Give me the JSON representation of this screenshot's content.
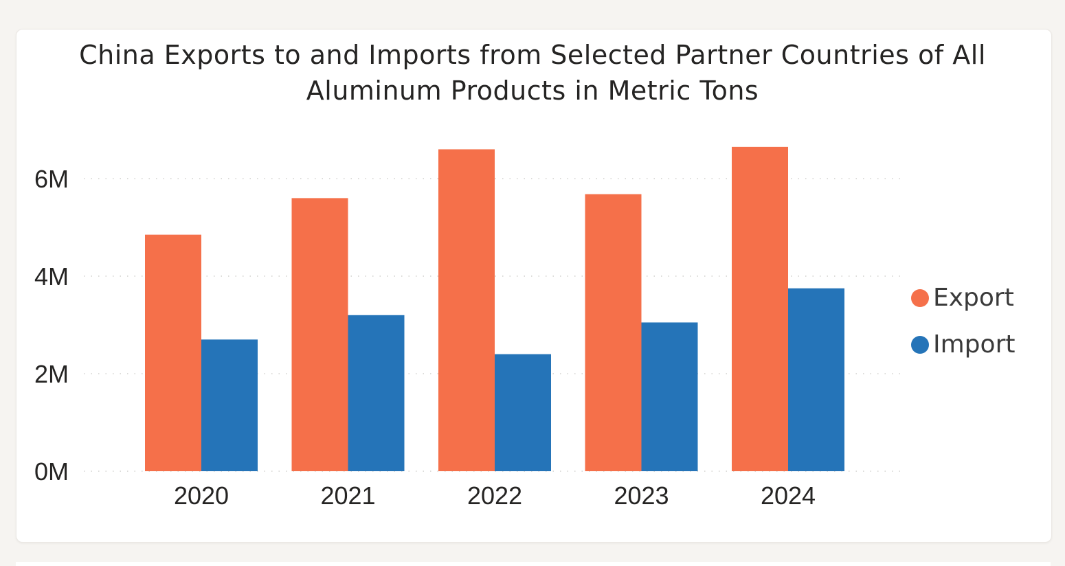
{
  "chart_data": {
    "type": "bar",
    "title": "China Exports to and Imports from Selected Partner Countries of All Aluminum Products in Metric Tons",
    "title_lines": [
      "China Exports to and Imports from Selected Partner Countries of All",
      "Aluminum Products in Metric Tons"
    ],
    "xlabel": "",
    "ylabel": "",
    "categories": [
      "2020",
      "2021",
      "2022",
      "2023",
      "2024"
    ],
    "series": [
      {
        "name": "Export",
        "color": "#f5704a",
        "values": [
          4.85,
          5.6,
          6.6,
          5.68,
          6.65
        ]
      },
      {
        "name": "Import",
        "color": "#2574b8",
        "values": [
          2.7,
          3.2,
          2.4,
          3.05,
          3.75
        ]
      }
    ],
    "y_unit": "M",
    "ylim": [
      0,
      7
    ],
    "yticks": [
      0,
      2,
      4,
      6
    ],
    "ytick_labels": [
      "0M",
      "2M",
      "4M",
      "6M"
    ],
    "grid": "horizontal dotted",
    "legend_position": "right"
  }
}
